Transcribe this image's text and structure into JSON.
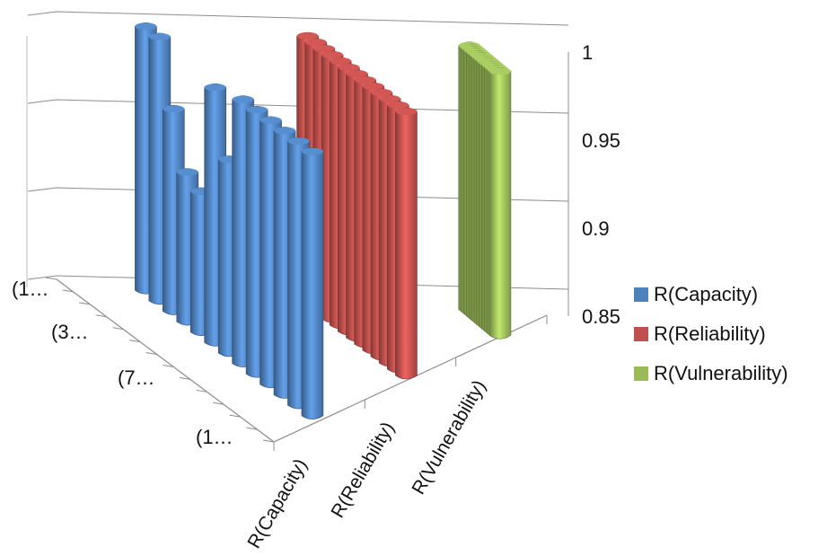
{
  "chart_data": {
    "type": "bar",
    "subtype": "3d-column",
    "title": "",
    "series_axis_categories": [
      "R(Capacity)",
      "R(Reliability)",
      "R(Vulnerability)"
    ],
    "depth_axis_tick_labels": [
      "(1…",
      "(3…",
      "(7…",
      "(1…"
    ],
    "zlim": [
      0.85,
      1.0
    ],
    "z_ticks": [
      "0.85",
      "0.9",
      "0.95",
      "1"
    ],
    "grid": true,
    "legend_position": "right",
    "series": [
      {
        "name": "R(Capacity)",
        "color": "#4f81bd",
        "values": [
          1.0,
          1.0,
          0.965,
          0.935,
          0.93,
          0.995,
          0.96,
          1.0,
          1.0,
          1.0,
          1.0,
          1.0,
          1.0
        ]
      },
      {
        "name": "R(Reliability)",
        "color": "#c0504d",
        "values": [
          1.0,
          1.0,
          1.0,
          1.0,
          1.0,
          1.0,
          1.0,
          1.0,
          1.0,
          1.0,
          1.0,
          1.0,
          1.0
        ]
      },
      {
        "name": "R(Vulnerability)",
        "color": "#9bbb59",
        "values": [
          1.0,
          1.0,
          1.0,
          1.0,
          1.0,
          1.0,
          1.0,
          1.0,
          1.0,
          1.0,
          1.0,
          1.0,
          1.0
        ]
      }
    ]
  },
  "legend": {
    "items": [
      {
        "label": "R(Capacity)",
        "color": "#4f81bd"
      },
      {
        "label": "R(Reliability)",
        "color": "#c0504d"
      },
      {
        "label": "R(Vulnerability)",
        "color": "#9bbb59"
      }
    ]
  }
}
